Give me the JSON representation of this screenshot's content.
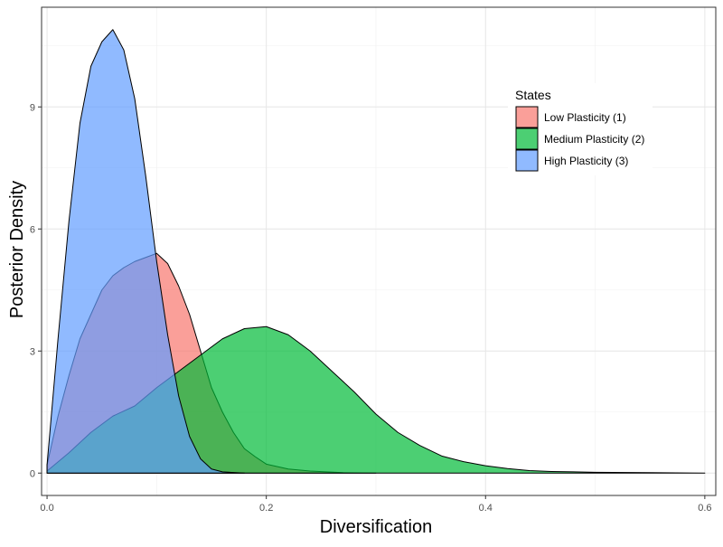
{
  "chart_data": {
    "type": "area",
    "xlabel": "Diversification",
    "ylabel": "Posterior Density",
    "xlim": [
      -0.005,
      0.61
    ],
    "ylim": [
      -0.55,
      11.45
    ],
    "x_ticks": [
      {
        "value": 0.0,
        "label": "0.0"
      },
      {
        "value": 0.2,
        "label": "0.2"
      },
      {
        "value": 0.4,
        "label": "0.4"
      },
      {
        "value": 0.6,
        "label": "0.6"
      }
    ],
    "y_ticks": [
      {
        "value": 0,
        "label": "0"
      },
      {
        "value": 3,
        "label": "3"
      },
      {
        "value": 6,
        "label": "6"
      },
      {
        "value": 9,
        "label": "9"
      }
    ],
    "grid": true,
    "legend": {
      "title": "States",
      "position": "top-right"
    },
    "series": [
      {
        "name": "Low Plasticity (1)",
        "color": "#F8766D",
        "points": [
          [
            0.0,
            0.2
          ],
          [
            0.01,
            1.4
          ],
          [
            0.02,
            2.4
          ],
          [
            0.03,
            3.3
          ],
          [
            0.04,
            3.9
          ],
          [
            0.05,
            4.5
          ],
          [
            0.06,
            4.85
          ],
          [
            0.07,
            5.05
          ],
          [
            0.08,
            5.2
          ],
          [
            0.09,
            5.3
          ],
          [
            0.1,
            5.4
          ],
          [
            0.11,
            5.15
          ],
          [
            0.12,
            4.6
          ],
          [
            0.13,
            3.9
          ],
          [
            0.14,
            3.0
          ],
          [
            0.15,
            2.1
          ],
          [
            0.16,
            1.5
          ],
          [
            0.17,
            1.0
          ],
          [
            0.18,
            0.6
          ],
          [
            0.19,
            0.4
          ],
          [
            0.2,
            0.22
          ],
          [
            0.22,
            0.1
          ],
          [
            0.24,
            0.05
          ],
          [
            0.27,
            0.01
          ],
          [
            0.3,
            0.0
          ]
        ]
      },
      {
        "name": "Medium Plasticity (2)",
        "color": "#00BA38",
        "points": [
          [
            0.0,
            0.05
          ],
          [
            0.02,
            0.5
          ],
          [
            0.04,
            1.0
          ],
          [
            0.06,
            1.4
          ],
          [
            0.08,
            1.65
          ],
          [
            0.1,
            2.1
          ],
          [
            0.12,
            2.5
          ],
          [
            0.14,
            2.9
          ],
          [
            0.16,
            3.3
          ],
          [
            0.18,
            3.55
          ],
          [
            0.2,
            3.6
          ],
          [
            0.22,
            3.4
          ],
          [
            0.24,
            3.0
          ],
          [
            0.26,
            2.5
          ],
          [
            0.28,
            2.0
          ],
          [
            0.3,
            1.45
          ],
          [
            0.32,
            1.0
          ],
          [
            0.34,
            0.68
          ],
          [
            0.36,
            0.42
          ],
          [
            0.38,
            0.28
          ],
          [
            0.4,
            0.18
          ],
          [
            0.42,
            0.11
          ],
          [
            0.44,
            0.06
          ],
          [
            0.46,
            0.04
          ],
          [
            0.5,
            0.02
          ],
          [
            0.55,
            0.01
          ],
          [
            0.6,
            0.0
          ]
        ]
      },
      {
        "name": "High Plasticity (3)",
        "color": "#619CFF",
        "points": [
          [
            0.0,
            0.2
          ],
          [
            0.01,
            3.3
          ],
          [
            0.02,
            6.2
          ],
          [
            0.03,
            8.6
          ],
          [
            0.04,
            10.0
          ],
          [
            0.05,
            10.6
          ],
          [
            0.06,
            10.9
          ],
          [
            0.07,
            10.4
          ],
          [
            0.08,
            9.2
          ],
          [
            0.09,
            7.3
          ],
          [
            0.1,
            5.2
          ],
          [
            0.11,
            3.4
          ],
          [
            0.12,
            1.9
          ],
          [
            0.13,
            0.9
          ],
          [
            0.14,
            0.35
          ],
          [
            0.15,
            0.1
          ],
          [
            0.16,
            0.03
          ],
          [
            0.18,
            0.0
          ]
        ]
      }
    ]
  }
}
